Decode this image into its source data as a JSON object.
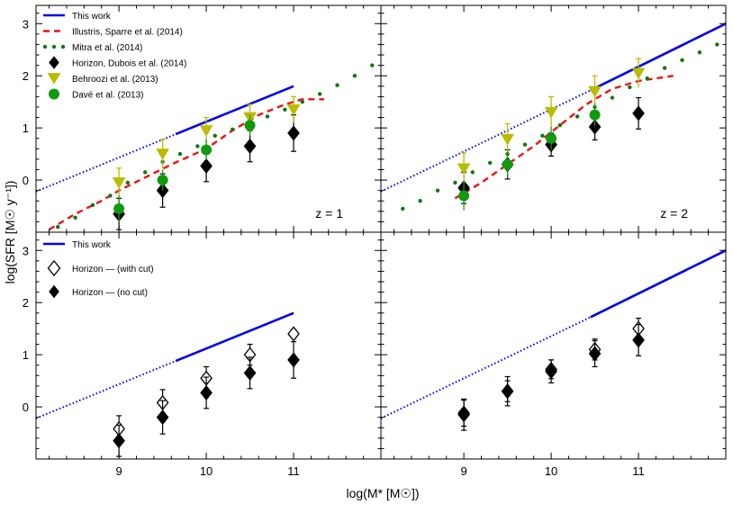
{
  "axes": {
    "xlabel": "log(M* [M☉])",
    "ylabel": "log(SFR [M☉ y⁻¹])",
    "xlim": [
      8.05,
      12.0
    ],
    "ylim": [
      -1.0,
      3.35
    ],
    "xticks": [
      "9",
      "10",
      "11"
    ],
    "yticks": [
      "0",
      "1",
      "2",
      "3"
    ]
  },
  "colors": {
    "this_work": "#0000ee",
    "illustris": "#ee1111",
    "mitra": "#117711",
    "behroozi": "#bbbb00",
    "dave": "#119911",
    "horizon": "#000000"
  },
  "legend_top": [
    {
      "key": "this_work",
      "label": "This work"
    },
    {
      "key": "illustris",
      "label": "Illustris,  Sparre et al. (2014)"
    },
    {
      "key": "mitra",
      "label": "Mitra et al. (2014)"
    },
    {
      "key": "horizon",
      "label": "Horizon,  Dubois et al. (2014)"
    },
    {
      "key": "behroozi",
      "label": "Behroozi et al. (2013)"
    },
    {
      "key": "dave",
      "label": "Davé et al. (2013)"
    }
  ],
  "legend_bottom": [
    {
      "key": "this_work",
      "label": "This work"
    },
    {
      "key": "horizon_cut",
      "label": "Horizon  —  (with cut)"
    },
    {
      "key": "horizon_nocut",
      "label": "Horizon  —  (no cut)"
    }
  ],
  "chart_data": [
    {
      "panel": "top-left",
      "type": "line",
      "label": "z = 1",
      "series": [
        {
          "name": "This work (solid)",
          "x": [
            9.65,
            11.0
          ],
          "y": [
            0.88,
            1.8
          ]
        },
        {
          "name": "This work (dotted extrapolation)",
          "x": [
            8.05,
            9.65
          ],
          "y": [
            -0.22,
            0.88
          ]
        },
        {
          "name": "Illustris, Sparre et al. (2014)",
          "x": [
            8.2,
            8.5,
            8.8,
            9.0,
            9.3,
            9.6,
            9.8,
            10.0,
            10.3,
            10.6,
            10.9,
            11.1,
            11.35
          ],
          "y": [
            -0.95,
            -0.65,
            -0.4,
            -0.2,
            0.05,
            0.3,
            0.45,
            0.6,
            0.95,
            1.25,
            1.45,
            1.55,
            1.55
          ]
        },
        {
          "name": "Mitra et al. (2014)",
          "x": [
            8.3,
            8.5,
            8.7,
            8.9,
            9.1,
            9.3,
            9.5,
            9.7,
            9.9,
            10.1,
            10.3,
            10.5,
            10.7,
            10.9,
            11.1,
            11.3,
            11.5,
            11.7,
            11.9
          ],
          "y": [
            -0.9,
            -0.72,
            -0.48,
            -0.3,
            -0.05,
            0.15,
            0.35,
            0.5,
            0.65,
            0.85,
            0.97,
            1.1,
            1.22,
            1.35,
            1.5,
            1.65,
            1.82,
            2.0,
            2.2
          ]
        },
        {
          "name": "Horizon, Dubois et al. (2014)",
          "x": [
            9.0,
            9.5,
            10.0,
            10.5,
            11.0
          ],
          "y": [
            -0.65,
            -0.2,
            0.27,
            0.65,
            0.9
          ],
          "err": [
            0.3,
            0.32,
            0.3,
            0.3,
            0.35
          ]
        },
        {
          "name": "Behroozi et al. (2013)",
          "x": [
            9.0,
            9.5,
            10.0,
            10.5,
            11.0
          ],
          "y": [
            -0.05,
            0.5,
            0.95,
            1.2,
            1.35
          ],
          "err": [
            0.28,
            0.28,
            0.25,
            0.25,
            0.25
          ]
        },
        {
          "name": "Davé et al. (2013)",
          "x": [
            9.0,
            9.5,
            10.0,
            10.5,
            11.0
          ],
          "y": [
            -0.55,
            0.0,
            0.58,
            1.05,
            null
          ],
          "err": [
            0.25,
            0.2,
            0.2,
            0.2,
            0
          ]
        }
      ]
    },
    {
      "panel": "top-right",
      "type": "line",
      "label": "z = 2",
      "series": [
        {
          "name": "This work (solid)",
          "x": [
            10.45,
            12.0
          ],
          "y": [
            1.72,
            3.0
          ]
        },
        {
          "name": "This work (dotted extrapolation)",
          "x": [
            8.05,
            10.45
          ],
          "y": [
            -0.22,
            1.72
          ]
        },
        {
          "name": "Illustris, Sparre et al. (2014)",
          "x": [
            8.9,
            9.2,
            9.5,
            9.8,
            10.1,
            10.4,
            10.7,
            11.0,
            11.4
          ],
          "y": [
            -0.35,
            -0.05,
            0.3,
            0.65,
            1.05,
            1.45,
            1.75,
            1.9,
            2.0
          ]
        },
        {
          "name": "Mitra et al. (2014)",
          "x": [
            8.3,
            8.5,
            8.7,
            8.9,
            9.1,
            9.3,
            9.5,
            9.7,
            9.9,
            10.1,
            10.3,
            10.5,
            10.7,
            10.9,
            11.1,
            11.3,
            11.5,
            11.7,
            11.9
          ],
          "y": [
            -0.55,
            -0.4,
            -0.2,
            -0.05,
            0.15,
            0.33,
            0.5,
            0.68,
            0.85,
            1.05,
            1.22,
            1.4,
            1.58,
            1.78,
            1.95,
            2.15,
            2.3,
            2.45,
            2.6
          ]
        },
        {
          "name": "Horizon, Dubois et al. (2014)",
          "x": [
            9.0,
            9.5,
            10.0,
            10.5,
            11.0
          ],
          "y": [
            -0.15,
            0.3,
            0.68,
            1.02,
            1.28
          ],
          "err": [
            0.3,
            0.28,
            0.22,
            0.25,
            0.3
          ]
        },
        {
          "name": "Behroozi et al. (2013)",
          "x": [
            9.0,
            9.5,
            10.0,
            10.5,
            11.0
          ],
          "y": [
            0.22,
            0.78,
            1.3,
            1.7,
            2.05
          ],
          "err": [
            0.3,
            0.3,
            0.3,
            0.3,
            0.28
          ]
        },
        {
          "name": "Davé et al. (2013)",
          "x": [
            9.0,
            9.5,
            10.0,
            10.5,
            11.0
          ],
          "y": [
            -0.3,
            0.3,
            0.8,
            1.25,
            null
          ],
          "err": [
            0.28,
            0.25,
            0.22,
            0.22,
            0
          ]
        }
      ]
    },
    {
      "panel": "bottom-left",
      "type": "scatter",
      "series": [
        {
          "name": "This work (solid)",
          "x": [
            9.65,
            11.0
          ],
          "y": [
            0.88,
            1.8
          ]
        },
        {
          "name": "This work (dotted extrapolation)",
          "x": [
            8.05,
            9.65
          ],
          "y": [
            -0.22,
            0.88
          ]
        },
        {
          "name": "Horizon — (with cut)",
          "x": [
            9.0,
            9.5,
            10.0,
            10.5,
            11.0
          ],
          "y": [
            -0.42,
            0.08,
            0.55,
            1.0,
            1.4
          ],
          "err": [
            0.25,
            0.25,
            0.22,
            0.2,
            0.0
          ]
        },
        {
          "name": "Horizon — (no cut)",
          "x": [
            9.0,
            9.5,
            10.0,
            10.5,
            11.0
          ],
          "y": [
            -0.65,
            -0.2,
            0.27,
            0.65,
            0.9
          ],
          "err": [
            0.3,
            0.32,
            0.3,
            0.3,
            0.35
          ]
        }
      ]
    },
    {
      "panel": "bottom-right",
      "type": "scatter",
      "series": [
        {
          "name": "This work (solid)",
          "x": [
            10.45,
            12.0
          ],
          "y": [
            1.72,
            3.0
          ]
        },
        {
          "name": "This work (dotted extrapolation)",
          "x": [
            8.05,
            10.45
          ],
          "y": [
            -0.22,
            1.72
          ]
        },
        {
          "name": "Horizon — (with cut)",
          "x": [
            9.0,
            9.5,
            10.0,
            10.5,
            11.0
          ],
          "y": [
            -0.12,
            0.3,
            0.72,
            1.1,
            1.5
          ],
          "err": [
            0.25,
            0.2,
            0.18,
            0.2,
            0.2
          ]
        },
        {
          "name": "Horizon — (no cut)",
          "x": [
            9.0,
            9.5,
            10.0,
            10.5,
            11.0
          ],
          "y": [
            -0.15,
            0.3,
            0.68,
            1.02,
            1.28
          ],
          "err": [
            0.3,
            0.28,
            0.22,
            0.25,
            0.3
          ]
        }
      ]
    }
  ]
}
